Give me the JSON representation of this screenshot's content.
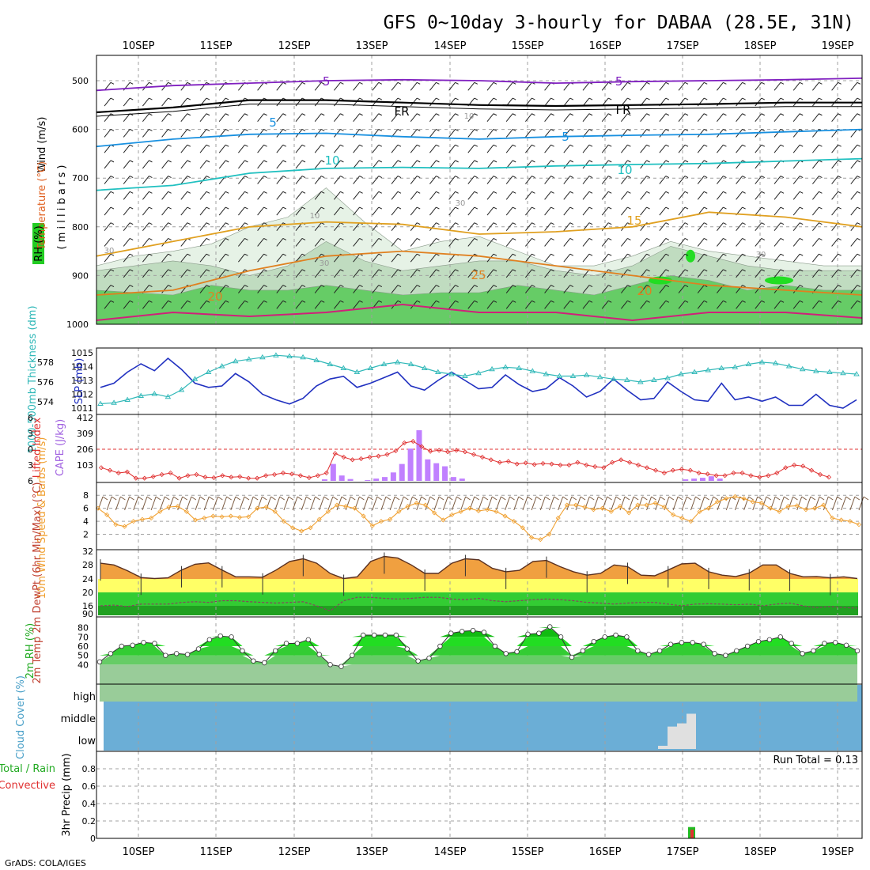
{
  "title": "GFS 0~10day 3-hourly for DABAA (28.5E, 31N)",
  "footer": "GrADS: COLA/IGES",
  "run_total_label": "Run Total = 0.13",
  "colors": {
    "grid": "#a0a0a0",
    "rh_fill_light": "#e6f2e6",
    "rh_fill_mid": "#c0dcc0",
    "rh_fill_green": "#66cc66",
    "rh_fill_bright": "#22dd22",
    "cape_bar": "#c080ff",
    "lifted": "#e03030",
    "slp": "#2030c0",
    "thick": "#30b8b8",
    "wind": "#f0a030",
    "temp_orange": "#f0a040",
    "cloud": "#6baed6",
    "precip_conv": "#e03030",
    "precip_total": "#22bb22"
  },
  "chart_data": [
    {
      "panel": "upper-air",
      "type": "contour",
      "ylabel_parts": [
        "Wind (m/s)",
        "Temperature (°C)",
        "RH (%)"
      ],
      "ylabel_sub": "( m i l l i b a r s )",
      "x_ticks": [
        "10SEP",
        "11SEP",
        "12SEP",
        "13SEP",
        "14SEP",
        "15SEP",
        "16SEP",
        "17SEP",
        "18SEP",
        "19SEP"
      ],
      "y_ticks": [
        500,
        600,
        700,
        800,
        900,
        1000
      ],
      "isotherm_labels": [
        "-5",
        "-5",
        "FR",
        "FR",
        "5",
        "5",
        "10",
        "10",
        "15",
        "20",
        "20",
        "25",
        "10",
        "10",
        "30",
        "30",
        "30",
        "30"
      ],
      "isotherms": [
        {
          "label": "-5",
          "color": "#8020c0",
          "levels": [
            520,
            510,
            505,
            500,
            498,
            500,
            505,
            502,
            500,
            498,
            495
          ]
        },
        {
          "label": "FR",
          "color": "#000000",
          "levels": [
            565,
            555,
            540,
            540,
            545,
            550,
            552,
            550,
            548,
            545,
            545
          ]
        },
        {
          "label": "5",
          "color": "#1890e0",
          "levels": [
            635,
            620,
            610,
            608,
            615,
            620,
            615,
            612,
            610,
            605,
            600
          ]
        },
        {
          "label": "10",
          "color": "#20c0c0",
          "levels": [
            725,
            715,
            690,
            680,
            678,
            680,
            675,
            672,
            670,
            665,
            660
          ]
        },
        {
          "label": "15",
          "color": "#e0a020",
          "levels": [
            860,
            830,
            800,
            790,
            795,
            815,
            810,
            800,
            770,
            780,
            800
          ]
        },
        {
          "label": "20",
          "color": "#e08020",
          "levels": [
            940,
            930,
            890,
            860,
            850,
            860,
            880,
            900,
            920,
            930,
            940
          ]
        }
      ]
    },
    {
      "panel": "slp-thickness",
      "type": "line",
      "ylabel_left": "1000-500mb Thickness (dm)",
      "ylabel_right": "SLP (mb)",
      "y_left_ticks": [
        574,
        576,
        578
      ],
      "y_right_ticks": [
        1011,
        1012,
        1013,
        1014,
        1015
      ],
      "series": [
        {
          "name": "SLP",
          "values": [
            1012.5,
            1012.8,
            1013.6,
            1014.2,
            1013.7,
            1014.6,
            1013.8,
            1012.8,
            1012.5,
            1012.6,
            1013.5,
            1012.9,
            1012.0,
            1011.6,
            1011.3,
            1011.7,
            1012.6,
            1013.1,
            1013.3,
            1012.5,
            1012.8,
            1013.2,
            1013.6,
            1012.6,
            1012.3,
            1013.0,
            1013.6,
            1013.0,
            1012.4,
            1012.5,
            1013.4,
            1012.7,
            1012.2,
            1012.4,
            1013.2,
            1012.6,
            1011.8,
            1012.2,
            1013.1,
            1012.3,
            1011.6,
            1011.7,
            1012.9,
            1012.2,
            1011.6,
            1011.5,
            1012.8,
            1011.6,
            1011.8,
            1011.5,
            1011.8,
            1011.2,
            1011.2,
            1012.0,
            1011.2,
            1011.0,
            1011.6
          ]
        },
        {
          "name": "Thickness",
          "values": [
            573.8,
            573.9,
            574.2,
            574.6,
            574.8,
            574.5,
            575.2,
            576.3,
            577.0,
            577.6,
            578.1,
            578.3,
            578.5,
            578.7,
            578.6,
            578.5,
            578.2,
            577.8,
            577.4,
            577.0,
            577.4,
            577.8,
            578.0,
            577.8,
            577.4,
            577.0,
            576.8,
            576.6,
            576.9,
            577.3,
            577.5,
            577.4,
            577.1,
            576.8,
            576.6,
            576.6,
            576.7,
            576.5,
            576.3,
            576.2,
            576.0,
            576.2,
            576.4,
            576.8,
            577.0,
            577.2,
            577.4,
            577.5,
            577.8,
            578.0,
            577.9,
            577.6,
            577.3,
            577.1,
            577.0,
            576.9,
            576.8
          ]
        }
      ]
    },
    {
      "panel": "cape-lifted",
      "type": "bar",
      "ylabel_left": "Lifted Index",
      "ylabel_right": "CAPE (J/kg)",
      "y_left_ticks": [
        -6,
        -3,
        0,
        3,
        6
      ],
      "y_right_ticks": [
        103,
        206,
        309,
        412
      ],
      "series": [
        {
          "name": "CAPE",
          "values": [
            0,
            0,
            0,
            0,
            0,
            0,
            0,
            0,
            0,
            0,
            0,
            0,
            0,
            0,
            0,
            0,
            0,
            0,
            0,
            0,
            0,
            0,
            0,
            0,
            0,
            0,
            10,
            110,
            35,
            12,
            0,
            5,
            15,
            25,
            55,
            110,
            210,
            330,
            140,
            115,
            95,
            25,
            15,
            0,
            0,
            0,
            0,
            0,
            0,
            0,
            0,
            0,
            0,
            0,
            0,
            0,
            0,
            0,
            0,
            0,
            0,
            0,
            0,
            0,
            0,
            0,
            0,
            0,
            10,
            15,
            20,
            30,
            15,
            0,
            0,
            0,
            0,
            0,
            0,
            0,
            0,
            0,
            0,
            0,
            0,
            0,
            0,
            0,
            0
          ]
        },
        {
          "name": "Lifted Index",
          "values": [
            3.5,
            4.0,
            4.5,
            4.3,
            5.5,
            5.5,
            5.2,
            4.8,
            4.5,
            5.5,
            5.0,
            4.8,
            5.3,
            5.4,
            5.0,
            5.3,
            5.2,
            5.5,
            5.5,
            5.0,
            4.8,
            4.5,
            4.7,
            5.0,
            5.4,
            5.0,
            4.5,
            0.8,
            1.5,
            2.0,
            1.8,
            1.5,
            1.3,
            1.0,
            0.3,
            -1.2,
            -1.5,
            -0.5,
            0.4,
            0.2,
            0.5,
            0.2,
            0.5,
            1.0,
            1.5,
            2.0,
            2.5,
            2.3,
            2.8,
            2.6,
            2.9,
            2.7,
            2.8,
            3.0,
            3.0,
            2.5,
            3.0,
            3.3,
            3.5,
            2.5,
            2.0,
            2.5,
            3.0,
            3.5,
            4.0,
            4.5,
            4.0,
            3.8,
            4.0,
            4.5,
            4.7,
            5.0,
            5.0,
            4.5,
            4.5,
            5.0,
            5.3,
            5.0,
            4.5,
            3.5,
            3.0,
            3.2,
            4.0,
            4.8,
            5.3
          ]
        }
      ]
    },
    {
      "panel": "10m-wind",
      "type": "line",
      "ylabel": "10m Wind Speed & Barbs (m/s)",
      "y_ticks": [
        2,
        4,
        6,
        8
      ],
      "series": [
        {
          "name": "Wind speed",
          "values": [
            6.0,
            5.0,
            3.5,
            3.2,
            4.0,
            4.3,
            4.5,
            5.5,
            6.2,
            6.3,
            5.5,
            4.2,
            4.5,
            4.8,
            4.7,
            4.8,
            4.6,
            4.7,
            6.0,
            6.2,
            5.5,
            4.0,
            3.0,
            2.5,
            3.0,
            4.3,
            5.5,
            6.5,
            6.3,
            6.0,
            4.8,
            3.3,
            4.0,
            4.3,
            5.5,
            6.3,
            6.8,
            6.5,
            5.3,
            4.2,
            5.0,
            5.5,
            6.0,
            5.6,
            5.8,
            5.5,
            4.8,
            4.0,
            3.0,
            1.5,
            1.2,
            2.0,
            4.5,
            6.5,
            6.5,
            6.2,
            5.8,
            6.0,
            5.5,
            6.3,
            5.3,
            6.5,
            6.5,
            6.8,
            6.2,
            5.0,
            4.5,
            4.0,
            5.5,
            6.0,
            7.0,
            7.5,
            7.8,
            7.5,
            7.0,
            6.8,
            6.0,
            5.5,
            6.3,
            6.4,
            5.8,
            6.0,
            6.5,
            4.5,
            4.2,
            4.0,
            3.5
          ]
        }
      ]
    },
    {
      "panel": "2m-temp",
      "type": "area",
      "ylabel": "2m Temp 2m DewPt (6hr Min/Max) (°C)",
      "y_ticks": [
        16,
        20,
        24,
        28,
        32
      ],
      "series": [
        {
          "name": "Temperature",
          "values": [
            28.5,
            28.0,
            26.3,
            24.3,
            24.0,
            24.2,
            26.5,
            28.2,
            28.6,
            26.5,
            24.5,
            24.5,
            24.4,
            26.5,
            29.0,
            29.8,
            28.5,
            25.5,
            24.0,
            24.5,
            29.0,
            30.5,
            30.0,
            28.0,
            25.5,
            25.5,
            28.5,
            29.8,
            29.5,
            27.0,
            26.0,
            26.4,
            29.0,
            29.3,
            27.5,
            26.0,
            25.0,
            25.5,
            28.0,
            27.5,
            25.0,
            24.8,
            26.5,
            28.3,
            28.5,
            26.0,
            25.0,
            24.6,
            25.6,
            28.0,
            28.0,
            25.5,
            24.5,
            24.6,
            24.2,
            24.5,
            24.0
          ]
        },
        {
          "name": "Dew point",
          "values": [
            16.0,
            16.2,
            15.8,
            16.5,
            16.5,
            16.5,
            17.0,
            17.2,
            17.0,
            17.5,
            17.5,
            17.2,
            17.0,
            16.8,
            17.0,
            17.2,
            16.0,
            14.5,
            17.5,
            18.5,
            18.5,
            18.2,
            18.0,
            18.2,
            18.5,
            18.5,
            18.0,
            17.8,
            18.2,
            17.5,
            17.2,
            17.5,
            17.8,
            18.0,
            17.8,
            17.5,
            17.0,
            16.8,
            16.5,
            16.8,
            17.0,
            17.0,
            16.5,
            16.0,
            16.5,
            16.6,
            16.5,
            16.3,
            16.5,
            16.0,
            16.5,
            16.8,
            16.0,
            15.5,
            15.8,
            15.5,
            15.3
          ]
        }
      ]
    },
    {
      "panel": "2m-rh",
      "type": "area",
      "ylabel": "2m RH (%)",
      "y_ticks": [
        40,
        50,
        60,
        70,
        80
      ],
      "series": [
        {
          "name": "2m RH",
          "values": [
            43,
            52,
            60,
            61,
            64,
            63,
            50,
            52,
            51,
            57,
            67,
            71,
            70,
            55,
            44,
            42,
            55,
            63,
            63,
            67,
            51,
            40,
            38,
            50,
            72,
            72,
            72,
            72,
            57,
            44,
            47,
            60,
            74,
            76,
            77,
            75,
            60,
            52,
            54,
            73,
            74,
            81,
            70,
            48,
            55,
            65,
            70,
            72,
            70,
            55,
            51,
            55,
            62,
            64,
            64,
            62,
            52,
            50,
            55,
            60,
            65,
            67,
            70,
            63,
            52,
            55,
            63,
            64,
            61,
            55
          ]
        }
      ]
    },
    {
      "panel": "cloud-cover",
      "type": "bar",
      "ylabel": "Cloud Cover (%)",
      "y_ticks": [
        "high",
        "middle",
        "low"
      ],
      "series": [
        {
          "name": "Low cloud",
          "x": [
            "17SEP 00Z",
            "17SEP 03Z",
            "17SEP 06Z",
            "17SEP 09Z"
          ],
          "values": [
            5,
            35,
            40,
            55
          ]
        }
      ]
    },
    {
      "panel": "precipitation",
      "type": "bar",
      "ylabel_main": "3hr Precip (mm)",
      "legend": [
        "Total / Rain",
        "Convective"
      ],
      "y_ticks": [
        0,
        0.2,
        0.4,
        0.6,
        0.8
      ],
      "run_total": 0.13,
      "series": [
        {
          "name": "Total / Rain",
          "x": [
            "17SEP 03Z"
          ],
          "values": [
            0.13
          ]
        },
        {
          "name": "Convective",
          "x": [
            "17SEP 03Z"
          ],
          "values": [
            0.1
          ]
        }
      ]
    }
  ]
}
